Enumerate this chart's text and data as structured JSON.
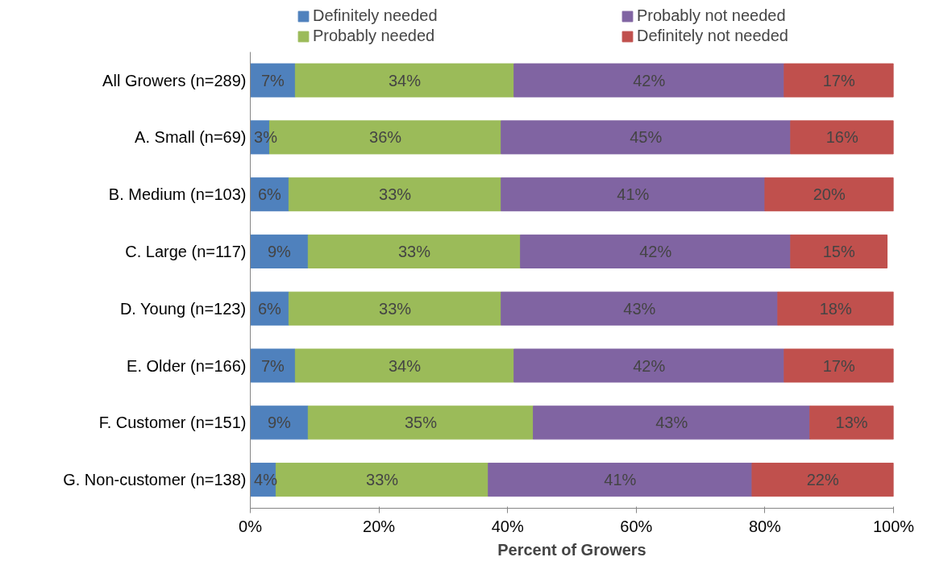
{
  "chart_data": {
    "type": "bar",
    "orientation": "horizontal",
    "stacked": true,
    "legend": "top",
    "grid": false,
    "categories": [
      "All Growers (n=289)",
      "A. Small (n=69)",
      "B. Medium (n=103)",
      "C. Large (n=117)",
      "D. Young (n=123)",
      "E. Older (n=166)",
      "F. Customer (n=151)",
      "G. Non-customer (n=138)"
    ],
    "series": [
      {
        "name": "Definitely needed",
        "color": "#4f81bd",
        "values": [
          7,
          3,
          6,
          9,
          6,
          7,
          9,
          4
        ],
        "value_labels": [
          "7%",
          "3%",
          "6%",
          "9%",
          "6%",
          "7%",
          "9%",
          "4%"
        ]
      },
      {
        "name": "Probably needed",
        "color": "#9bbb59",
        "values": [
          34,
          36,
          33,
          33,
          33,
          34,
          35,
          33
        ],
        "value_labels": [
          "34%",
          "36%",
          "33%",
          "33%",
          "33%",
          "34%",
          "35%",
          "33%"
        ]
      },
      {
        "name": "Probably not needed",
        "color": "#8064a2",
        "values": [
          42,
          45,
          41,
          42,
          43,
          42,
          43,
          41
        ],
        "value_labels": [
          "42%",
          "45%",
          "41%",
          "42%",
          "43%",
          "42%",
          "43%",
          "41%"
        ]
      },
      {
        "name": "Definitely not needed",
        "color": "#c0504d",
        "values": [
          17,
          16,
          20,
          15,
          18,
          17,
          13,
          22
        ],
        "value_labels": [
          "17%",
          "16%",
          "20%",
          "15%",
          "18%",
          "17%",
          "13%",
          "22%"
        ]
      }
    ],
    "xlim": [
      0,
      100
    ],
    "xticks": [
      {
        "value": 0,
        "label": "0%"
      },
      {
        "value": 20,
        "label": "20%"
      },
      {
        "value": 40,
        "label": "40%"
      },
      {
        "value": 60,
        "label": "60%"
      },
      {
        "value": 80,
        "label": "80%"
      },
      {
        "value": 100,
        "label": "100%"
      }
    ],
    "xlabel": "Percent of Growers"
  }
}
